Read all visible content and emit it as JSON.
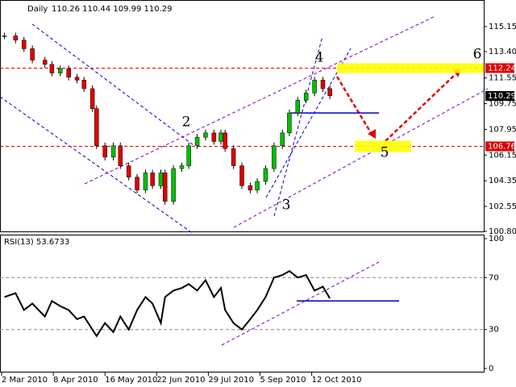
{
  "chart_data": [
    {
      "type": "candles",
      "title": "Daily",
      "ohlc_text": "110.26 110.44 109.99 110.29",
      "x": [
        2,
        10,
        16,
        22,
        31,
        36,
        42,
        48,
        54,
        59,
        65,
        68,
        74,
        80,
        85,
        91,
        97,
        103,
        108,
        114,
        117,
        123,
        129,
        134,
        140,
        146,
        152,
        157,
        160,
        166,
        172,
        178,
        183,
        189,
        195,
        201,
        206,
        212,
        218,
        224,
        230,
        235
      ],
      "values": [
        114.5,
        114.2,
        113.6,
        112.8,
        112.5,
        111.9,
        112.2,
        111.6,
        111.4,
        110.8,
        109.4,
        106.8,
        106.0,
        106.8,
        105.4,
        104.6,
        103.7,
        104.9,
        104.0,
        104.9,
        102.9,
        105.2,
        105.4,
        106.8,
        107.4,
        107.7,
        107.1,
        107.7,
        106.6,
        105.4,
        104.0,
        103.7,
        104.3,
        105.2,
        106.8,
        107.7,
        109.1,
        110.0,
        110.5,
        111.4,
        110.8,
        110.3
      ],
      "up_color": "#00c000",
      "down_color": "#e00000",
      "xlim": [
        0,
        344
      ],
      "ylim": [
        100.8,
        116.9
      ],
      "yticks": [
        115.15,
        {
          "value": 113.4,
          "label": "113.40"
        },
        111.55,
        109.75,
        107.95,
        106.15,
        104.35,
        102.55,
        {
          "value": 100.8,
          "label": "100.80"
        }
      ],
      "levels": [
        112.24,
        106.76
      ],
      "last_price": 110.29,
      "support": 109.1,
      "annotations": [
        "2",
        "3",
        "4",
        "5",
        "6"
      ]
    },
    {
      "type": "line",
      "title": "RSI(13) 53.6733",
      "x": [
        2,
        10,
        16,
        22,
        31,
        36,
        42,
        48,
        54,
        59,
        65,
        68,
        74,
        80,
        85,
        91,
        97,
        103,
        108,
        114,
        117,
        123,
        129,
        134,
        140,
        146,
        152,
        157,
        160,
        166,
        172,
        178,
        183,
        189,
        195,
        201,
        206,
        212,
        218,
        224,
        230,
        235
      ],
      "values": [
        55,
        58,
        45,
        50,
        40,
        52,
        48,
        45,
        38,
        40,
        30,
        25,
        35,
        28,
        40,
        30,
        45,
        55,
        50,
        35,
        55,
        60,
        62,
        65,
        60,
        68,
        55,
        62,
        45,
        35,
        30,
        38,
        45,
        55,
        70,
        72,
        75,
        70,
        72,
        60,
        63,
        54
      ],
      "color": "#000000",
      "xlim": [
        0,
        344
      ],
      "ylim": [
        0,
        100
      ],
      "yticks": [
        100,
        70,
        30,
        0
      ],
      "dashed": [
        70,
        30
      ],
      "support": 52,
      "xticks": [
        {
          "value": 0,
          "label": "2 Mar 2010"
        },
        {
          "value": 37,
          "label": "8 Apr 2010"
        },
        {
          "value": 74,
          "label": "16 May 2010"
        },
        {
          "value": 111,
          "label": "22 Jun 2010"
        },
        {
          "value": 148,
          "label": "29 Jul 2010"
        },
        {
          "value": 185,
          "label": "5 Sep 2010"
        },
        {
          "value": 222,
          "label": "12 Oct 2010"
        }
      ]
    }
  ]
}
